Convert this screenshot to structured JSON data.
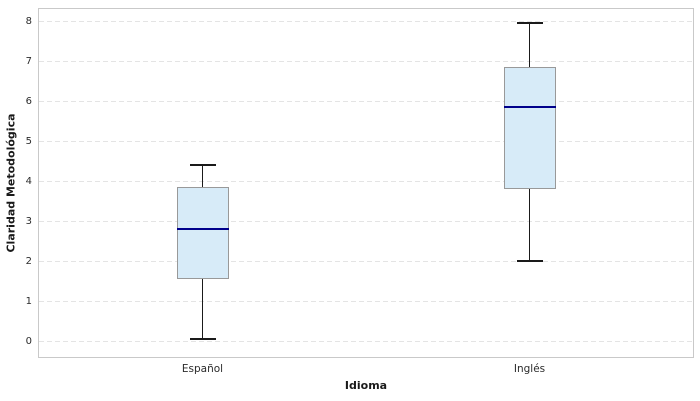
{
  "chart_data": {
    "type": "boxplot",
    "title": "",
    "xlabel": "Idioma",
    "ylabel": "Claridad Metodológica",
    "categories": [
      "Español",
      "Inglés"
    ],
    "series": [
      {
        "name": "Español",
        "whisker_low": 0.05,
        "q1": 1.55,
        "median": 2.8,
        "q3": 3.85,
        "whisker_high": 4.4
      },
      {
        "name": "Inglés",
        "whisker_low": 2.0,
        "q1": 3.8,
        "median": 5.85,
        "q3": 6.85,
        "whisker_high": 7.95
      }
    ],
    "yticks": [
      0,
      1,
      2,
      3,
      4,
      5,
      6,
      7,
      8
    ],
    "ylim": [
      -0.4,
      8.3
    ],
    "grid": "horizontal-dashed",
    "legend": "none",
    "colors": {
      "box_fill": "#d7ebf8",
      "box_edge": "#999999",
      "median": "#00008b",
      "whisker": "#1a1a1a",
      "gridline": "#e4e4e4",
      "spine": "#c9c9c9",
      "tick_label": "#2b2b2b",
      "background": "#ffffff"
    }
  }
}
